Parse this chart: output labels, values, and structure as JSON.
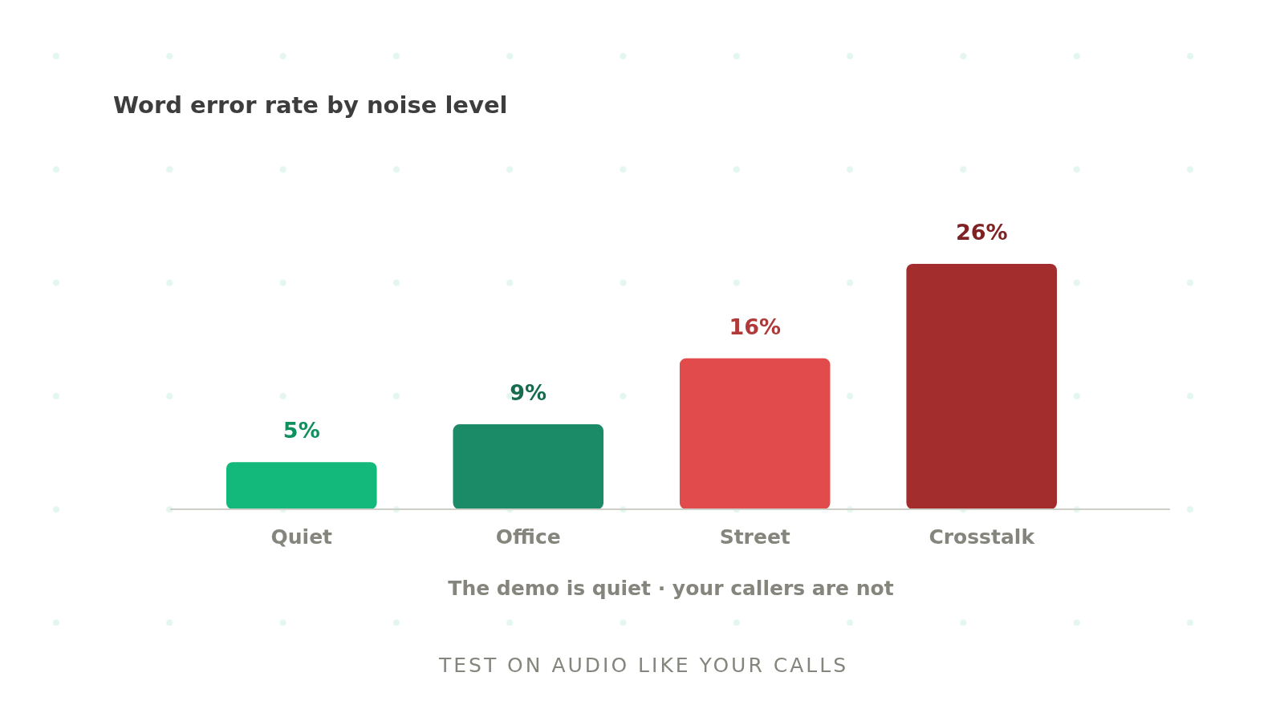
{
  "chart_data": {
    "type": "bar",
    "title": "Word error rate by noise level",
    "xlabel": "The demo is quiet · your callers are not",
    "annotations": [
      "TEST ON AUDIO LIKE YOUR CALLS"
    ],
    "categories": [
      "Quiet",
      "Office",
      "Street",
      "Crosstalk"
    ],
    "values": [
      5,
      9,
      16,
      26
    ],
    "colors": [
      "#12b97a",
      "#1b8a66",
      "#e24b4b",
      "#a32c2d"
    ],
    "value_labels": [
      "5%",
      "9%",
      "16%",
      "26%"
    ]
  }
}
